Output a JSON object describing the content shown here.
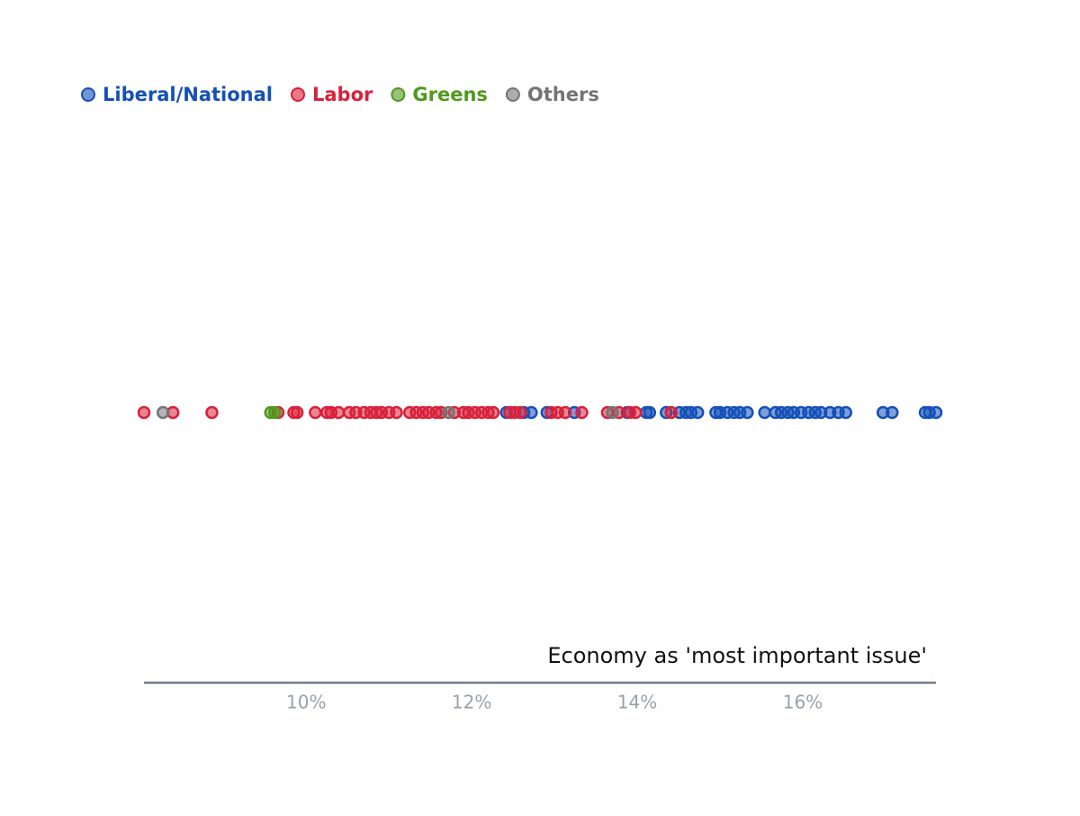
{
  "chart_data": {
    "type": "strip",
    "xlabel": "Economy as 'most important issue'",
    "xlim": [
      8.04,
      17.61
    ],
    "xticks": [
      {
        "value": 10,
        "label": "10%"
      },
      {
        "value": 12,
        "label": "12%"
      },
      {
        "value": 14,
        "label": "14%"
      },
      {
        "value": 16,
        "label": "16%"
      }
    ],
    "series": [
      {
        "name": "Liberal/National",
        "color": "#1450b8",
        "values": [
          12.42,
          12.63,
          12.72,
          12.91,
          13.24,
          13.88,
          14.11,
          14.15,
          14.35,
          14.51,
          14.59,
          14.65,
          14.73,
          14.95,
          15.0,
          15.09,
          15.17,
          15.24,
          15.33,
          15.54,
          15.67,
          15.74,
          15.82,
          15.89,
          15.98,
          16.07,
          16.15,
          16.22,
          16.33,
          16.43,
          16.52,
          16.97,
          17.08,
          17.48,
          17.53,
          17.61
        ]
      },
      {
        "name": "Labor",
        "color": "#d9203a",
        "values": [
          8.04,
          8.39,
          8.86,
          9.66,
          9.85,
          9.89,
          10.11,
          10.25,
          10.3,
          10.39,
          10.52,
          10.6,
          10.7,
          10.78,
          10.85,
          10.91,
          11.0,
          11.09,
          11.25,
          11.33,
          11.41,
          11.48,
          11.57,
          11.63,
          11.79,
          11.9,
          11.96,
          12.04,
          12.12,
          12.2,
          12.26,
          12.46,
          12.52,
          12.59,
          12.96,
          13.04,
          13.13,
          13.33,
          13.64,
          13.78,
          13.91,
          13.98,
          14.41
        ]
      },
      {
        "name": "Greens",
        "color": "#4f9a1c",
        "values": [
          9.57,
          9.62
        ]
      },
      {
        "name": "Others",
        "color": "#747474",
        "values": [
          8.27,
          11.72,
          13.7
        ]
      }
    ]
  }
}
